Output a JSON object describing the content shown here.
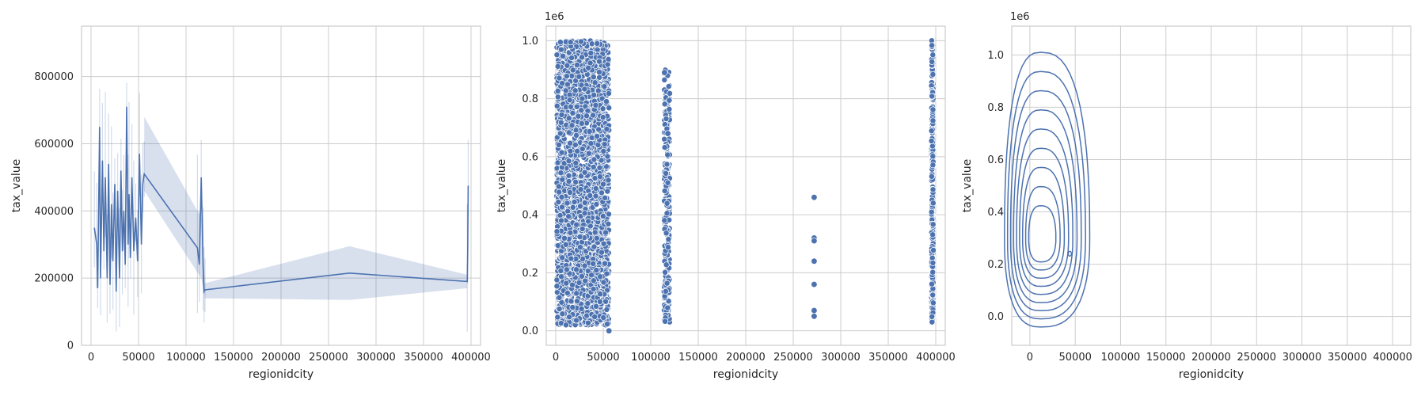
{
  "colors": {
    "series": "#4c72b0",
    "grid": "#cccccc",
    "text": "#262626"
  },
  "chart_data": [
    {
      "type": "line",
      "xlabel": "regionidcity",
      "ylabel": "tax_value",
      "xlim": [
        -10000,
        410000
      ],
      "ylim": [
        0,
        950000
      ],
      "xticks": [
        "0",
        "50000",
        "100000",
        "150000",
        "200000",
        "250000",
        "300000",
        "350000",
        "400000"
      ],
      "yticks": [
        "0",
        "200000",
        "400000",
        "600000",
        "800000"
      ],
      "grid": true,
      "mean_line": {
        "x": [
          3500,
          6000,
          7000,
          9000,
          10000,
          12000,
          13500,
          15000,
          17000,
          18500,
          20000,
          21500,
          23000,
          25000,
          26500,
          28000,
          30000,
          31500,
          33000,
          34500,
          36000,
          37500,
          39000,
          40000,
          41500,
          43000,
          45000,
          47000,
          49000,
          51000,
          53000,
          54500,
          56000,
          112000,
          114000,
          116000,
          118000,
          119000,
          120000,
          272000,
          396000,
          396500,
          397000
        ],
        "y": [
          350000,
          300000,
          170000,
          650000,
          200000,
          550000,
          280000,
          500000,
          200000,
          540000,
          180000,
          420000,
          250000,
          480000,
          160000,
          460000,
          200000,
          520000,
          280000,
          400000,
          240000,
          710000,
          300000,
          450000,
          260000,
          500000,
          280000,
          380000,
          250000,
          570000,
          300000,
          480000,
          510000,
          290000,
          240000,
          500000,
          230000,
          160000,
          165000,
          215000,
          190000,
          280000,
          475000
        ]
      },
      "ci_band": {
        "x": [
          56000,
          116000,
          120000,
          272000,
          396000
        ],
        "lower": [
          460000,
          200000,
          140000,
          135000,
          170000
        ],
        "upper": [
          680000,
          380000,
          185000,
          295000,
          210000
        ]
      }
    },
    {
      "type": "scatter",
      "xlabel": "regionidcity",
      "ylabel": "tax_value",
      "xlim": [
        -10000,
        410000
      ],
      "ylim": [
        -0.05,
        1.05
      ],
      "y_offset_label": "1e6",
      "xticks": [
        "0",
        "50000",
        "100000",
        "150000",
        "200000",
        "250000",
        "300000",
        "350000",
        "400000"
      ],
      "yticks": [
        "0.0",
        "0.2",
        "0.4",
        "0.6",
        "0.8",
        "1.0"
      ],
      "grid": true,
      "clusters": [
        {
          "x_range": [
            1000,
            56000
          ],
          "y_range": [
            0.02,
            1.0
          ]
        },
        {
          "x_range": [
            114000,
            120000
          ],
          "y_range": [
            0.03,
            0.9
          ]
        },
        {
          "x_range": [
            395500,
            397500
          ],
          "y_range": [
            0.03,
            1.0
          ]
        }
      ],
      "isolated_points": [
        {
          "x": 272000,
          "y": 0.46
        },
        {
          "x": 272000,
          "y": 0.32
        },
        {
          "x": 272000,
          "y": 0.31
        },
        {
          "x": 272000,
          "y": 0.24
        },
        {
          "x": 272000,
          "y": 0.16
        },
        {
          "x": 272000,
          "y": 0.07
        },
        {
          "x": 272000,
          "y": 0.05
        },
        {
          "x": 118000,
          "y": 0.68
        },
        {
          "x": 114500,
          "y": 0.89
        },
        {
          "x": 56000,
          "y": 0.0
        }
      ]
    },
    {
      "type": "kde_contour",
      "xlabel": "regionidcity",
      "ylabel": "tax_value",
      "xlim": [
        -20000,
        420000
      ],
      "ylim": [
        -0.11,
        1.11
      ],
      "y_offset_label": "1e6",
      "xticks": [
        "0",
        "50000",
        "100000",
        "150000",
        "200000",
        "250000",
        "300000",
        "350000",
        "400000"
      ],
      "yticks": [
        "0.0",
        "0.2",
        "0.4",
        "0.6",
        "0.8",
        "1.0"
      ],
      "grid": true,
      "contour_peak": {
        "x": 12000,
        "y": 0.3
      },
      "contour_levels": 9
    }
  ]
}
